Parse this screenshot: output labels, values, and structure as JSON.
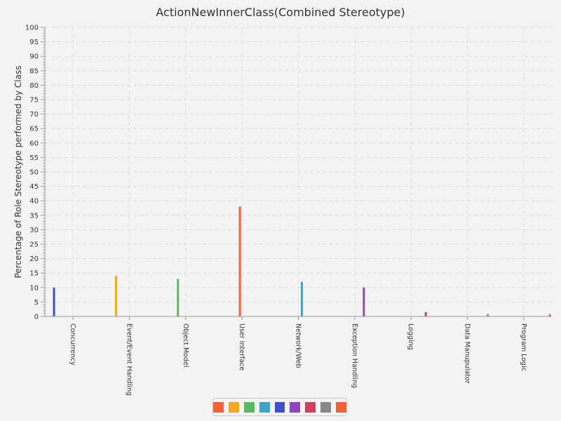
{
  "chart_data": {
    "type": "bar",
    "title": "ActionNewInnerClass(Combined Stereotype)",
    "xlabel": "",
    "ylabel": "Percentage of Role Stereotype performed by Class",
    "ylim": [
      0,
      100
    ],
    "ytick_step": 5,
    "grid": true,
    "categories": [
      "Concurrency",
      "Event/Event Handling",
      "Object Model",
      "User Interface",
      "Network/Web",
      "Exception Handling",
      "Logging",
      "Data Manupulator",
      "Program Logic"
    ],
    "series": [
      {
        "color": "#3f51c4",
        "values": [
          10,
          0,
          0,
          0,
          0,
          0,
          0,
          0,
          0
        ]
      },
      {
        "color": "#f5a623",
        "values": [
          0,
          14,
          0,
          0,
          0,
          0,
          0,
          0,
          0
        ]
      },
      {
        "color": "#5cb85c",
        "values": [
          0,
          0,
          13,
          0,
          0,
          0,
          0,
          0,
          0
        ]
      },
      {
        "color": "#f0623a",
        "values": [
          0,
          0,
          0,
          38,
          0,
          0,
          0,
          0,
          0
        ]
      },
      {
        "color": "#3aa5c8",
        "values": [
          0,
          0,
          0,
          0,
          12,
          0,
          0,
          0,
          0
        ]
      },
      {
        "color": "#8e44c4",
        "values": [
          0,
          0,
          0,
          0,
          0,
          10,
          0,
          0,
          0
        ]
      },
      {
        "color": "#c9435f",
        "values": [
          0,
          0,
          0,
          0,
          0,
          0,
          1.5,
          0,
          0
        ]
      },
      {
        "color": "#888888",
        "values": [
          0,
          0,
          0,
          0,
          0,
          0,
          0,
          0.8,
          0
        ]
      },
      {
        "color": "#f0623a",
        "values": [
          0,
          0,
          0,
          0,
          0,
          0,
          0,
          0,
          0.8
        ]
      }
    ],
    "legend": {
      "placement": "bottom-center",
      "swatches": [
        "#f0623a",
        "#f5a623",
        "#5cb85c",
        "#3aa5c8",
        "#3f51c4",
        "#8e44c4",
        "#c9435f",
        "#888888",
        "#f0623a"
      ]
    }
  }
}
